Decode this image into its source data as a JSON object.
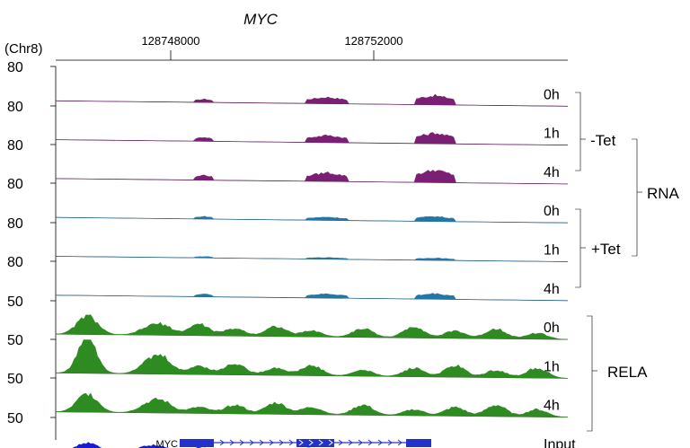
{
  "chart_data": {
    "type": "area",
    "title": "MYC",
    "chromosome_label": "(Chr8)",
    "x_ticks": [
      128748000,
      128752000
    ],
    "x_tick_labels": [
      "128748000",
      "128752000"
    ],
    "gene": {
      "name": "MYC",
      "strand": "+",
      "color": "#2233cc"
    },
    "tracks": [
      {
        "label": "0h",
        "ymax": "80",
        "color": "#7b1f74",
        "group": "RNA -Tet",
        "peaks": [
          [
            0.045,
            0.35
          ],
          [
            0.33,
            0.7
          ],
          [
            0.6,
            1.0
          ]
        ]
      },
      {
        "label": "1h",
        "ymax": "80",
        "color": "#7b1f74",
        "group": "RNA -Tet",
        "peaks": [
          [
            0.045,
            0.45
          ],
          [
            0.33,
            0.78
          ],
          [
            0.6,
            1.15
          ]
        ]
      },
      {
        "label": "4h",
        "ymax": "80",
        "color": "#7b1f74",
        "group": "RNA -Tet",
        "peaks": [
          [
            0.045,
            0.55
          ],
          [
            0.33,
            0.95
          ],
          [
            0.6,
            1.35
          ]
        ]
      },
      {
        "label": "0h",
        "ymax": "80",
        "color": "#2277a6",
        "group": "RNA +Tet",
        "peaks": [
          [
            0.045,
            0.28
          ],
          [
            0.33,
            0.35
          ],
          [
            0.6,
            0.55
          ]
        ]
      },
      {
        "label": "1h",
        "ymax": "80",
        "color": "#2277a6",
        "group": "RNA +Tet",
        "peaks": [
          [
            0.045,
            0.15
          ],
          [
            0.33,
            0.18
          ],
          [
            0.6,
            0.25
          ]
        ]
      },
      {
        "label": "4h",
        "ymax": "80",
        "color": "#2277a6",
        "group": "RNA +Tet",
        "peaks": [
          [
            0.045,
            0.3
          ],
          [
            0.33,
            0.45
          ],
          [
            0.6,
            0.6
          ]
        ]
      },
      {
        "label": "0h",
        "ymax": "50",
        "color": "#2e8b21",
        "group": "RELA"
      },
      {
        "label": "1h",
        "ymax": "50",
        "color": "#2e8b21",
        "group": "RELA"
      },
      {
        "label": "4h",
        "ymax": "50",
        "color": "#2e8b21",
        "group": "RELA"
      },
      {
        "label": "Input",
        "ymax": "50",
        "color": "#1a1ad0",
        "group": "Input"
      }
    ],
    "groups": [
      {
        "label": "-Tet"
      },
      {
        "label": "+Tet"
      },
      {
        "label": "RNA"
      },
      {
        "label": "RELA"
      }
    ]
  }
}
